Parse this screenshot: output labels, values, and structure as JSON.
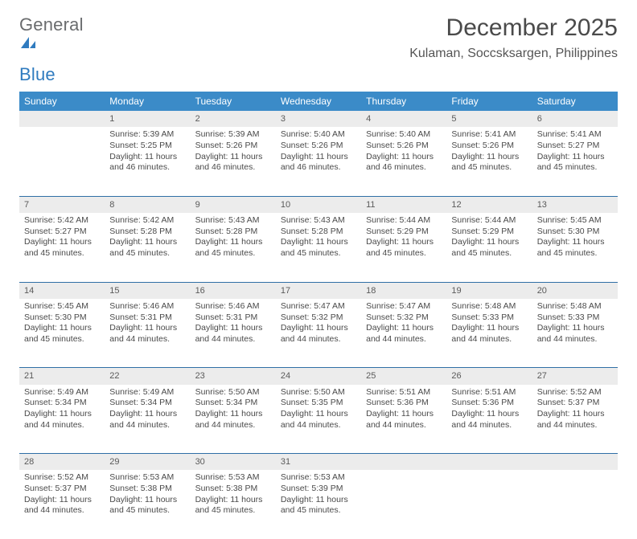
{
  "brand": {
    "part1": "General",
    "part2": "Blue"
  },
  "title": "December 2025",
  "location": "Kulaman, Soccsksargen, Philippines",
  "colors": {
    "header_bg": "#3b8bc8",
    "header_text": "#ffffff",
    "row_separator": "#2f6fa6",
    "daynum_bg": "#ececec",
    "body_text": "#4a4a4a",
    "brand_gray": "#6a6c6e",
    "brand_blue": "#2f7bbf",
    "page_bg": "#ffffff"
  },
  "typography": {
    "title_fontsize": 30,
    "location_fontsize": 16,
    "weekday_fontsize": 12,
    "daynum_fontsize": 11,
    "body_fontsize": 10.5
  },
  "weekdays": [
    "Sunday",
    "Monday",
    "Tuesday",
    "Wednesday",
    "Thursday",
    "Friday",
    "Saturday"
  ],
  "weeks": [
    [
      null,
      {
        "n": "1",
        "sunrise": "Sunrise: 5:39 AM",
        "sunset": "Sunset: 5:25 PM",
        "daylight": "Daylight: 11 hours and 46 minutes."
      },
      {
        "n": "2",
        "sunrise": "Sunrise: 5:39 AM",
        "sunset": "Sunset: 5:26 PM",
        "daylight": "Daylight: 11 hours and 46 minutes."
      },
      {
        "n": "3",
        "sunrise": "Sunrise: 5:40 AM",
        "sunset": "Sunset: 5:26 PM",
        "daylight": "Daylight: 11 hours and 46 minutes."
      },
      {
        "n": "4",
        "sunrise": "Sunrise: 5:40 AM",
        "sunset": "Sunset: 5:26 PM",
        "daylight": "Daylight: 11 hours and 46 minutes."
      },
      {
        "n": "5",
        "sunrise": "Sunrise: 5:41 AM",
        "sunset": "Sunset: 5:26 PM",
        "daylight": "Daylight: 11 hours and 45 minutes."
      },
      {
        "n": "6",
        "sunrise": "Sunrise: 5:41 AM",
        "sunset": "Sunset: 5:27 PM",
        "daylight": "Daylight: 11 hours and 45 minutes."
      }
    ],
    [
      {
        "n": "7",
        "sunrise": "Sunrise: 5:42 AM",
        "sunset": "Sunset: 5:27 PM",
        "daylight": "Daylight: 11 hours and 45 minutes."
      },
      {
        "n": "8",
        "sunrise": "Sunrise: 5:42 AM",
        "sunset": "Sunset: 5:28 PM",
        "daylight": "Daylight: 11 hours and 45 minutes."
      },
      {
        "n": "9",
        "sunrise": "Sunrise: 5:43 AM",
        "sunset": "Sunset: 5:28 PM",
        "daylight": "Daylight: 11 hours and 45 minutes."
      },
      {
        "n": "10",
        "sunrise": "Sunrise: 5:43 AM",
        "sunset": "Sunset: 5:28 PM",
        "daylight": "Daylight: 11 hours and 45 minutes."
      },
      {
        "n": "11",
        "sunrise": "Sunrise: 5:44 AM",
        "sunset": "Sunset: 5:29 PM",
        "daylight": "Daylight: 11 hours and 45 minutes."
      },
      {
        "n": "12",
        "sunrise": "Sunrise: 5:44 AM",
        "sunset": "Sunset: 5:29 PM",
        "daylight": "Daylight: 11 hours and 45 minutes."
      },
      {
        "n": "13",
        "sunrise": "Sunrise: 5:45 AM",
        "sunset": "Sunset: 5:30 PM",
        "daylight": "Daylight: 11 hours and 45 minutes."
      }
    ],
    [
      {
        "n": "14",
        "sunrise": "Sunrise: 5:45 AM",
        "sunset": "Sunset: 5:30 PM",
        "daylight": "Daylight: 11 hours and 45 minutes."
      },
      {
        "n": "15",
        "sunrise": "Sunrise: 5:46 AM",
        "sunset": "Sunset: 5:31 PM",
        "daylight": "Daylight: 11 hours and 44 minutes."
      },
      {
        "n": "16",
        "sunrise": "Sunrise: 5:46 AM",
        "sunset": "Sunset: 5:31 PM",
        "daylight": "Daylight: 11 hours and 44 minutes."
      },
      {
        "n": "17",
        "sunrise": "Sunrise: 5:47 AM",
        "sunset": "Sunset: 5:32 PM",
        "daylight": "Daylight: 11 hours and 44 minutes."
      },
      {
        "n": "18",
        "sunrise": "Sunrise: 5:47 AM",
        "sunset": "Sunset: 5:32 PM",
        "daylight": "Daylight: 11 hours and 44 minutes."
      },
      {
        "n": "19",
        "sunrise": "Sunrise: 5:48 AM",
        "sunset": "Sunset: 5:33 PM",
        "daylight": "Daylight: 11 hours and 44 minutes."
      },
      {
        "n": "20",
        "sunrise": "Sunrise: 5:48 AM",
        "sunset": "Sunset: 5:33 PM",
        "daylight": "Daylight: 11 hours and 44 minutes."
      }
    ],
    [
      {
        "n": "21",
        "sunrise": "Sunrise: 5:49 AM",
        "sunset": "Sunset: 5:34 PM",
        "daylight": "Daylight: 11 hours and 44 minutes."
      },
      {
        "n": "22",
        "sunrise": "Sunrise: 5:49 AM",
        "sunset": "Sunset: 5:34 PM",
        "daylight": "Daylight: 11 hours and 44 minutes."
      },
      {
        "n": "23",
        "sunrise": "Sunrise: 5:50 AM",
        "sunset": "Sunset: 5:34 PM",
        "daylight": "Daylight: 11 hours and 44 minutes."
      },
      {
        "n": "24",
        "sunrise": "Sunrise: 5:50 AM",
        "sunset": "Sunset: 5:35 PM",
        "daylight": "Daylight: 11 hours and 44 minutes."
      },
      {
        "n": "25",
        "sunrise": "Sunrise: 5:51 AM",
        "sunset": "Sunset: 5:36 PM",
        "daylight": "Daylight: 11 hours and 44 minutes."
      },
      {
        "n": "26",
        "sunrise": "Sunrise: 5:51 AM",
        "sunset": "Sunset: 5:36 PM",
        "daylight": "Daylight: 11 hours and 44 minutes."
      },
      {
        "n": "27",
        "sunrise": "Sunrise: 5:52 AM",
        "sunset": "Sunset: 5:37 PM",
        "daylight": "Daylight: 11 hours and 44 minutes."
      }
    ],
    [
      {
        "n": "28",
        "sunrise": "Sunrise: 5:52 AM",
        "sunset": "Sunset: 5:37 PM",
        "daylight": "Daylight: 11 hours and 44 minutes."
      },
      {
        "n": "29",
        "sunrise": "Sunrise: 5:53 AM",
        "sunset": "Sunset: 5:38 PM",
        "daylight": "Daylight: 11 hours and 45 minutes."
      },
      {
        "n": "30",
        "sunrise": "Sunrise: 5:53 AM",
        "sunset": "Sunset: 5:38 PM",
        "daylight": "Daylight: 11 hours and 45 minutes."
      },
      {
        "n": "31",
        "sunrise": "Sunrise: 5:53 AM",
        "sunset": "Sunset: 5:39 PM",
        "daylight": "Daylight: 11 hours and 45 minutes."
      },
      null,
      null,
      null
    ]
  ]
}
